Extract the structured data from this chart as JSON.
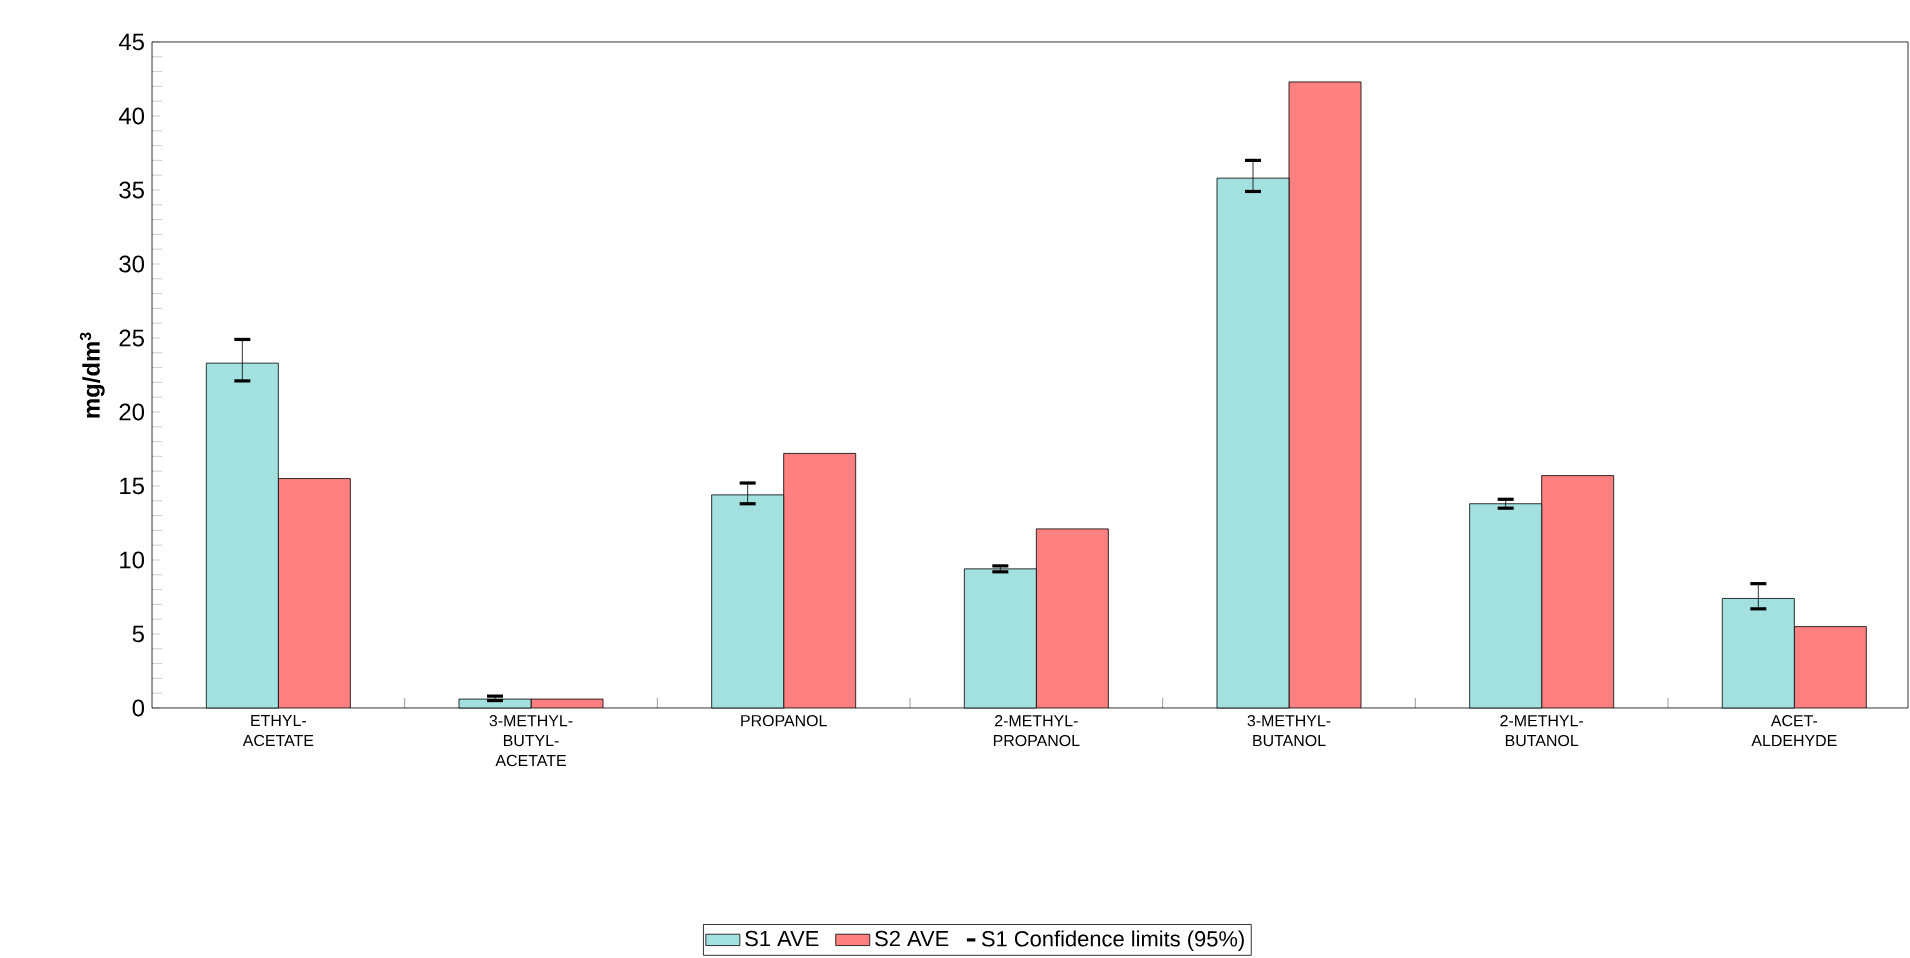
{
  "chart_data": {
    "type": "bar",
    "ylabel": "mg/dm$^{3}$",
    "categories": [
      "ETHYL-ACETATE",
      "3-METHYL-BUTYL-ACETATE",
      "PROPANOL",
      "2-METHYL-PROPANOL",
      "3-METHYL-BUTANOL",
      "2-METHYL-BUTANOL",
      "ACET-ALDEHYDE"
    ],
    "series": [
      {
        "name": "S1 AVE",
        "color": "#a3e0e0",
        "values": [
          23.3,
          0.6,
          14.4,
          9.4,
          35.8,
          13.8,
          7.4
        ],
        "errors": [
          [
            22.1,
            24.9
          ],
          [
            0.5,
            0.8
          ],
          [
            13.8,
            15.2
          ],
          [
            9.2,
            9.6
          ],
          [
            34.9,
            37.0
          ],
          [
            13.5,
            14.1
          ],
          [
            6.7,
            8.4
          ]
        ]
      },
      {
        "name": "S2 AVE",
        "color": "#ff8080",
        "values": [
          15.5,
          0.6,
          17.2,
          12.1,
          42.3,
          15.7,
          5.5
        ]
      }
    ],
    "annotations": [
      "S1 Confidence limits (95%)"
    ],
    "ylim": [
      0,
      45
    ],
    "yticks": [
      0,
      5,
      10,
      15,
      20,
      25,
      30,
      35,
      40,
      45
    ],
    "grid": false,
    "legend": "bottom"
  }
}
